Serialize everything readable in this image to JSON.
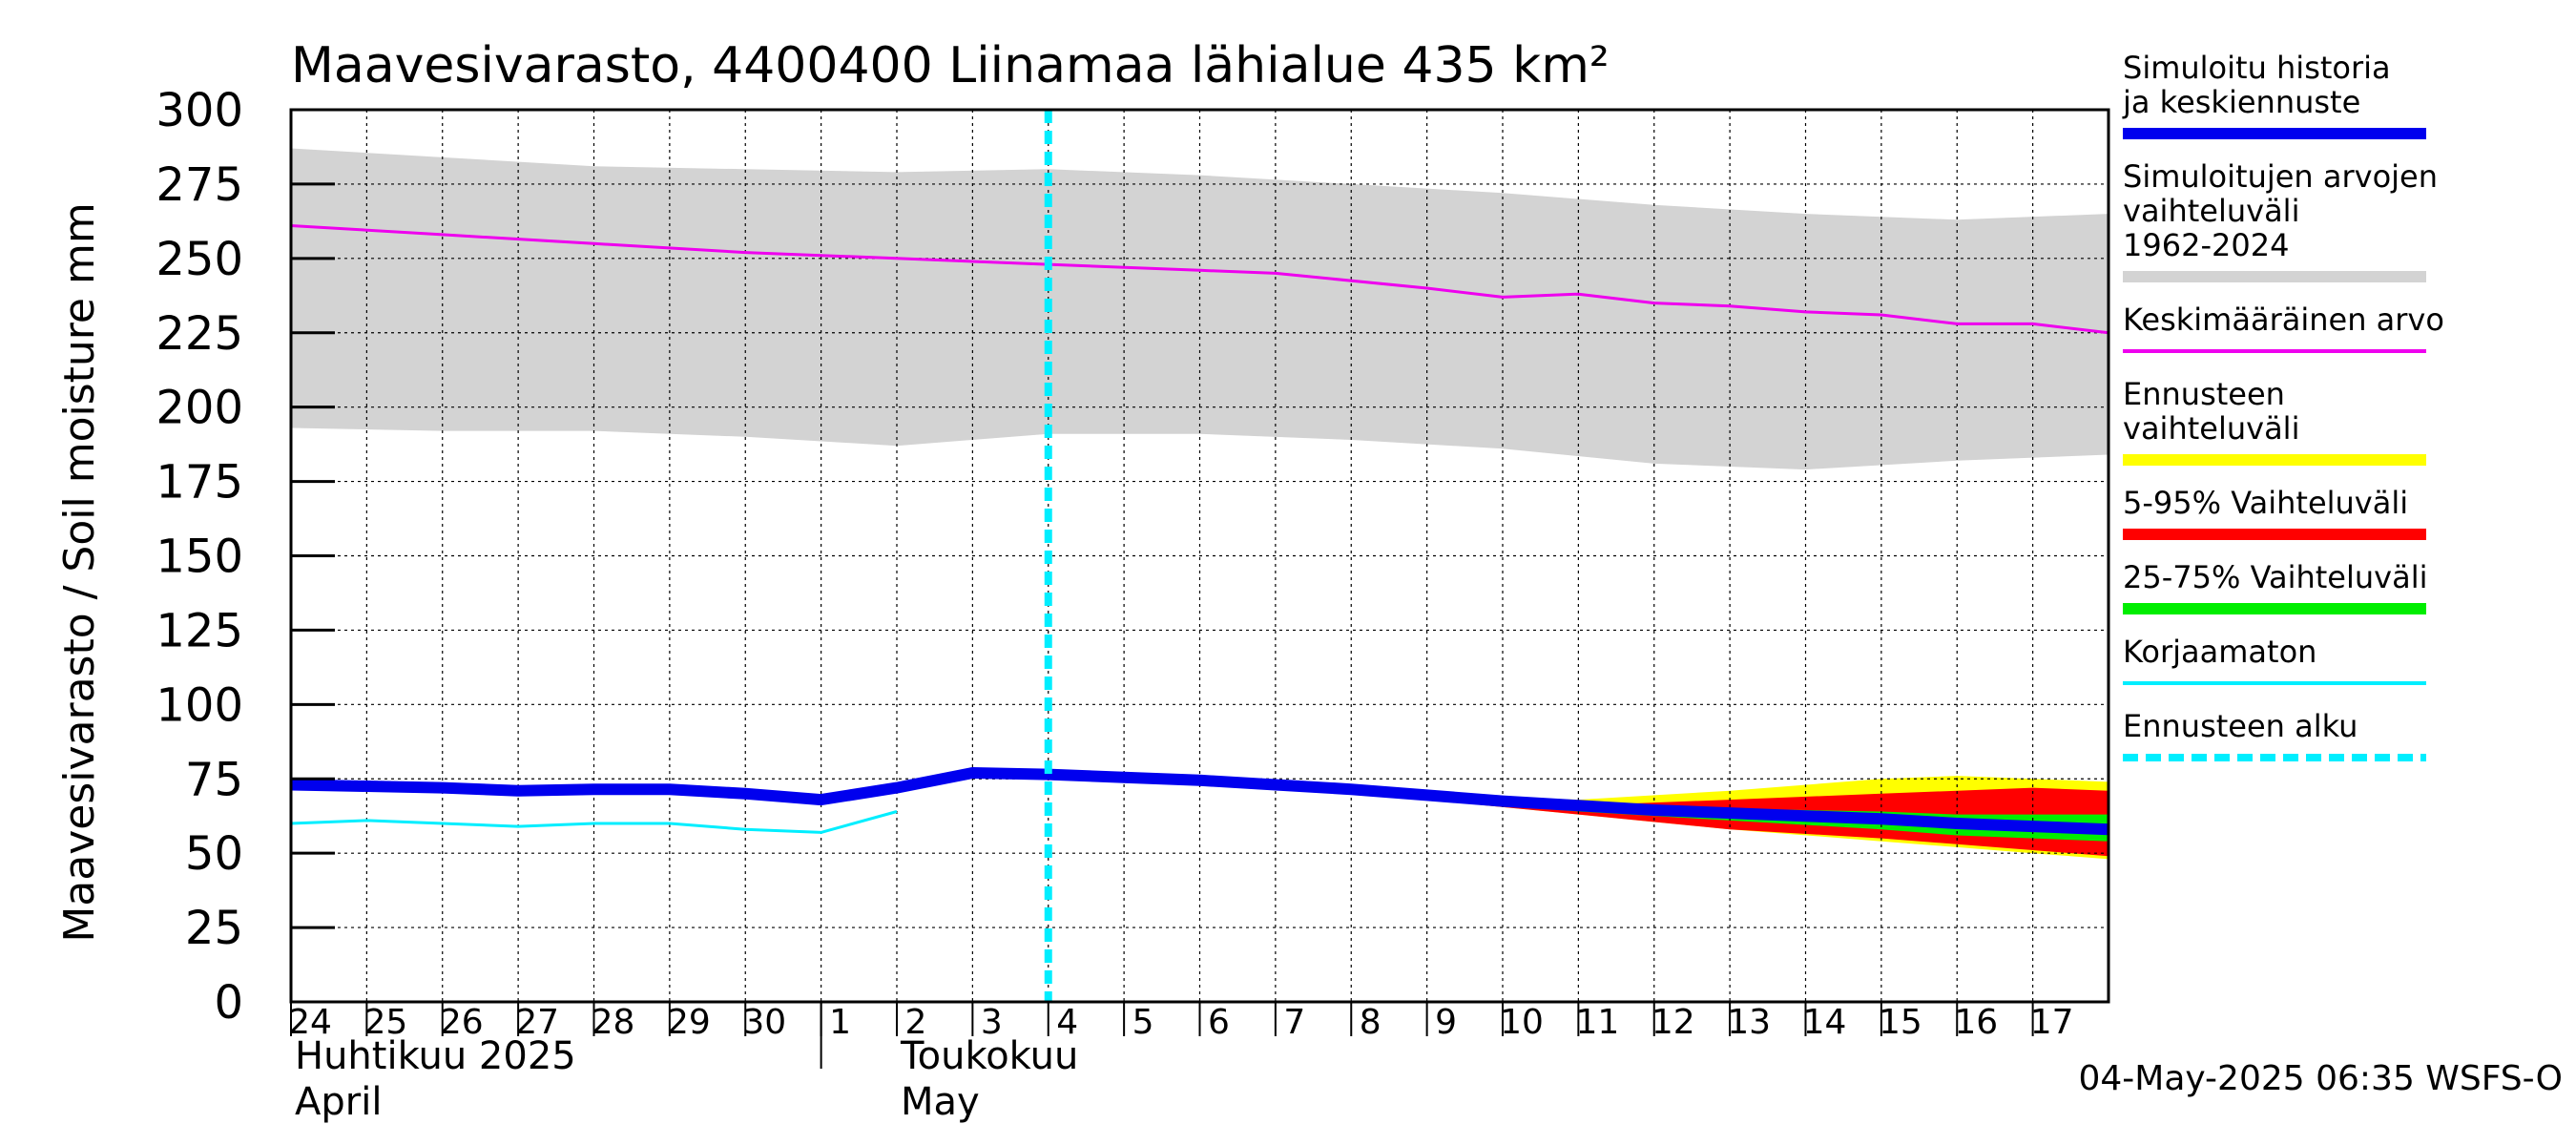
{
  "chart_data": {
    "type": "area",
    "title": "Maavesivarasto, 4400400 Liinamaa lähialue 435 km²",
    "ylabel": "Maavesivarasto / Soil moisture   mm",
    "ylim": [
      0,
      300
    ],
    "yticks": [
      0,
      25,
      50,
      75,
      100,
      125,
      150,
      175,
      200,
      225,
      250,
      275,
      300
    ],
    "grid": true,
    "legend_position": "right",
    "x_start": "2025-04-24",
    "x_end": "2025-05-18",
    "forecast_start": "2025-05-04",
    "x_tick_labels": [
      {
        "date": "2025-04-24",
        "label": "24"
      },
      {
        "date": "2025-04-25",
        "label": "25"
      },
      {
        "date": "2025-04-26",
        "label": "26"
      },
      {
        "date": "2025-04-27",
        "label": "27"
      },
      {
        "date": "2025-04-28",
        "label": "28"
      },
      {
        "date": "2025-04-29",
        "label": "29"
      },
      {
        "date": "2025-04-30",
        "label": "30"
      },
      {
        "date": "2025-05-01",
        "label": "1"
      },
      {
        "date": "2025-05-02",
        "label": "2"
      },
      {
        "date": "2025-05-03",
        "label": "3"
      },
      {
        "date": "2025-05-04",
        "label": "4"
      },
      {
        "date": "2025-05-05",
        "label": "5"
      },
      {
        "date": "2025-05-06",
        "label": "6"
      },
      {
        "date": "2025-05-07",
        "label": "7"
      },
      {
        "date": "2025-05-08",
        "label": "8"
      },
      {
        "date": "2025-05-09",
        "label": "9"
      },
      {
        "date": "2025-05-10",
        "label": "10"
      },
      {
        "date": "2025-05-11",
        "label": "11"
      },
      {
        "date": "2025-05-12",
        "label": "12"
      },
      {
        "date": "2025-05-13",
        "label": "13"
      },
      {
        "date": "2025-05-14",
        "label": "14"
      },
      {
        "date": "2025-05-15",
        "label": "15"
      },
      {
        "date": "2025-05-16",
        "label": "16"
      },
      {
        "date": "2025-05-17",
        "label": "17"
      }
    ],
    "month_labels": [
      {
        "date": "2025-04-24",
        "line1": "Huhtikuu  2025",
        "line2": "April"
      },
      {
        "date": "2025-05-02",
        "line1": "Toukokuu",
        "line2": "May"
      }
    ],
    "month_boundary": "2025-05-01",
    "series": [
      {
        "name": "Simuloitujen arvojen vaihteluväli 1962-2024",
        "kind": "band",
        "color": "#d3d3d3",
        "x": [
          "2025-04-24",
          "2025-04-26",
          "2025-04-28",
          "2025-04-30",
          "2025-05-02",
          "2025-05-04",
          "2025-05-06",
          "2025-05-08",
          "2025-05-10",
          "2025-05-12",
          "2025-05-14",
          "2025-05-16",
          "2025-05-18"
        ],
        "upper": [
          287,
          284,
          281,
          280,
          279,
          280,
          278,
          275,
          272,
          268,
          265,
          263,
          265
        ],
        "lower": [
          193,
          192,
          192,
          190,
          187,
          191,
          191,
          189,
          186,
          181,
          179,
          182,
          184
        ]
      },
      {
        "name": "Ennusteen vaihteluväli",
        "kind": "band",
        "color": "#ffff00",
        "x": [
          "2025-05-09",
          "2025-05-11",
          "2025-05-13",
          "2025-05-15",
          "2025-05-16",
          "2025-05-17",
          "2025-05-18"
        ],
        "upper": [
          70,
          68,
          71,
          75,
          76,
          75,
          74
        ],
        "lower": [
          68,
          63,
          58,
          54,
          52,
          50,
          48
        ]
      },
      {
        "name": "5-95% Vaihteluväli",
        "kind": "band",
        "color": "#ff0000",
        "x": [
          "2025-05-09",
          "2025-05-11",
          "2025-05-13",
          "2025-05-15",
          "2025-05-16",
          "2025-05-17",
          "2025-05-18"
        ],
        "upper": [
          69,
          66,
          68,
          70,
          71,
          72,
          71
        ],
        "lower": [
          68,
          63,
          58,
          55,
          53,
          51,
          49
        ]
      },
      {
        "name": "25-75% Vaihteluväli",
        "kind": "band",
        "color": "#00ee00",
        "x": [
          "2025-05-09",
          "2025-05-11",
          "2025-05-13",
          "2025-05-15",
          "2025-05-16",
          "2025-05-17",
          "2025-05-18"
        ],
        "upper": [
          69,
          65,
          65,
          64,
          63,
          63,
          63
        ],
        "lower": [
          68,
          64,
          61,
          58,
          56,
          55,
          54
        ]
      },
      {
        "name": "Keskimääräinen arvo",
        "kind": "line",
        "color": "#ee00ee",
        "width": 3,
        "x": [
          "2025-04-24",
          "2025-04-26",
          "2025-04-28",
          "2025-04-30",
          "2025-05-01",
          "2025-05-02",
          "2025-05-04",
          "2025-05-06",
          "2025-05-07",
          "2025-05-09",
          "2025-05-10",
          "2025-05-11",
          "2025-05-12",
          "2025-05-13",
          "2025-05-14",
          "2025-05-15",
          "2025-05-16",
          "2025-05-17",
          "2025-05-18"
        ],
        "y": [
          261,
          258,
          255,
          252,
          251,
          250,
          248,
          246,
          245,
          240,
          237,
          238,
          235,
          234,
          232,
          231,
          228,
          228,
          225
        ]
      },
      {
        "name": "Korjaamaton",
        "kind": "line",
        "color": "#00eeff",
        "width": 3,
        "x": [
          "2025-04-24",
          "2025-04-25",
          "2025-04-26",
          "2025-04-27",
          "2025-04-28",
          "2025-04-29",
          "2025-04-30",
          "2025-05-01",
          "2025-05-02"
        ],
        "y": [
          60,
          61,
          60,
          59,
          60,
          60,
          58,
          57,
          64
        ]
      },
      {
        "name": "Simuloitu historia ja keskiennuste",
        "kind": "line",
        "color": "#0000ee",
        "width": 12,
        "x": [
          "2025-04-24",
          "2025-04-25",
          "2025-04-26",
          "2025-04-27",
          "2025-04-28",
          "2025-04-29",
          "2025-04-30",
          "2025-05-01",
          "2025-05-02",
          "2025-05-03",
          "2025-05-04",
          "2025-05-05",
          "2025-05-06",
          "2025-05-07",
          "2025-05-08",
          "2025-05-09",
          "2025-05-10",
          "2025-05-11",
          "2025-05-12",
          "2025-05-13",
          "2025-05-14",
          "2025-05-15",
          "2025-05-16",
          "2025-05-17",
          "2025-05-18"
        ],
        "y": [
          73,
          72.5,
          72,
          71,
          71.5,
          71.5,
          70,
          68,
          72,
          77,
          76.5,
          75.5,
          74.5,
          73,
          71.5,
          69.5,
          67.5,
          66,
          64.5,
          63.5,
          62.5,
          61.5,
          60,
          59,
          58
        ]
      }
    ],
    "legend": [
      {
        "label": "Simuloitu historia ja keskiennuste",
        "color": "#0000ee",
        "style": "thick"
      },
      {
        "label": "Simuloitujen arvojen vaihteluväli 1962-2024",
        "color": "#d3d3d3",
        "style": "thick"
      },
      {
        "label": "Keskimääräinen arvo",
        "color": "#ee00ee",
        "style": "thin"
      },
      {
        "label": "Ennusteen vaihteluväli",
        "color": "#ffff00",
        "style": "thick"
      },
      {
        "label": "5-95% Vaihteluväli",
        "color": "#ff0000",
        "style": "thick"
      },
      {
        "label": "25-75% Vaihteluväli",
        "color": "#00ee00",
        "style": "thick"
      },
      {
        "label": "Korjaamaton",
        "color": "#00eeff",
        "style": "thin"
      },
      {
        "label": "Ennusteen alku",
        "color": "#00eeff",
        "style": "dashed"
      }
    ]
  },
  "footer": {
    "timestamp": "04-May-2025 06:35 WSFS-O"
  }
}
